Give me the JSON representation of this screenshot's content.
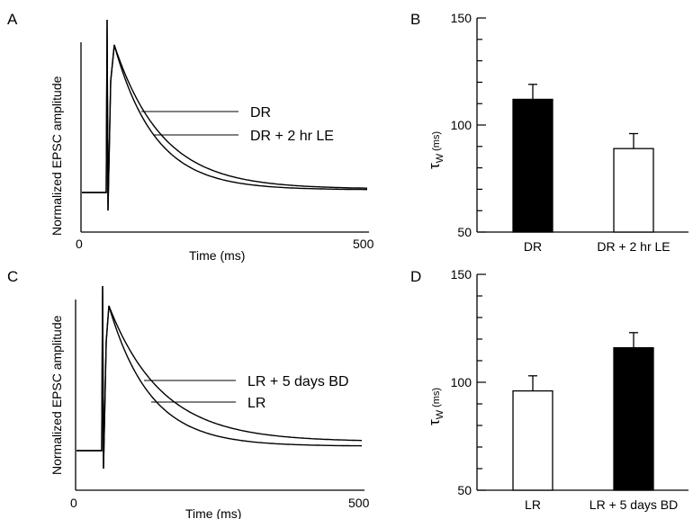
{
  "panels": {
    "A": {
      "label": "A",
      "ylabel": "Normalized EPSC amplitude",
      "xlabel": "Time (ms)",
      "x_start": "0",
      "x_end": "500",
      "traces": [
        {
          "name": "DR",
          "tau_ms": 112
        },
        {
          "name": "DR + 2 hr LE",
          "tau_ms": 89
        }
      ]
    },
    "B": {
      "label": "B",
      "ylabel_main": "τ",
      "ylabel_sub": "W",
      "ylabel_unit": "(ms)"
    },
    "C": {
      "label": "C",
      "ylabel": "Normalized EPSC amplitude",
      "xlabel": "Time (ms)",
      "x_start": "0",
      "x_end": "500",
      "traces": [
        {
          "name": "LR + 5 days BD",
          "tau_ms": 116
        },
        {
          "name": "LR",
          "tau_ms": 96
        }
      ]
    },
    "D": {
      "label": "D",
      "ylabel_main": "τ",
      "ylabel_sub": "W",
      "ylabel_unit": "(ms)"
    }
  },
  "chart_data": [
    {
      "panel": "A",
      "type": "line",
      "xlabel": "Time (ms)",
      "ylabel": "Normalized EPSC amplitude",
      "xlim": [
        0,
        500
      ],
      "series": [
        {
          "name": "DR",
          "tau_ms": 112
        },
        {
          "name": "DR + 2 hr LE",
          "tau_ms": 89
        }
      ]
    },
    {
      "panel": "B",
      "type": "bar",
      "categories": [
        "DR",
        "DR + 2 hr LE"
      ],
      "values": [
        112,
        89
      ],
      "errors": [
        7,
        7
      ],
      "fills": [
        "#000000",
        "#ffffff"
      ],
      "ylabel": "τW (ms)",
      "ylim": [
        50,
        150
      ],
      "yticks": [
        50,
        100,
        150
      ]
    },
    {
      "panel": "C",
      "type": "line",
      "xlabel": "Time (ms)",
      "ylabel": "Normalized EPSC amplitude",
      "xlim": [
        0,
        500
      ],
      "series": [
        {
          "name": "LR + 5 days BD",
          "tau_ms": 116
        },
        {
          "name": "LR",
          "tau_ms": 96
        }
      ]
    },
    {
      "panel": "D",
      "type": "bar",
      "categories": [
        "LR",
        "LR + 5 days BD"
      ],
      "values": [
        96,
        116
      ],
      "errors": [
        7,
        7
      ],
      "fills": [
        "#ffffff",
        "#000000"
      ],
      "ylabel": "τW (ms)",
      "ylim": [
        50,
        150
      ],
      "yticks": [
        50,
        100,
        150
      ]
    }
  ]
}
